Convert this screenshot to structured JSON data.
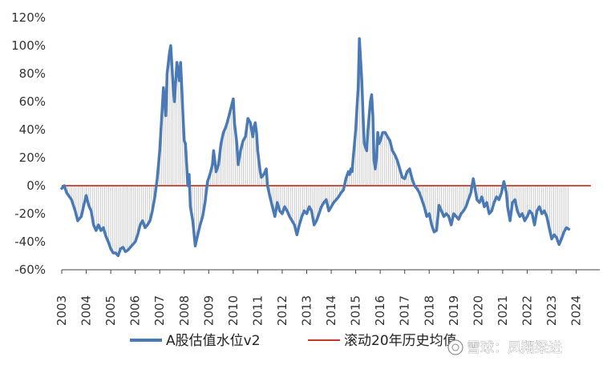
{
  "chart_data": {
    "type": "line",
    "title": "",
    "xlabel": "",
    "ylabel": "",
    "ylim": [
      -60,
      120
    ],
    "y_ticks": [
      "-60%",
      "-40%",
      "-20%",
      "0%",
      "20%",
      "40%",
      "60%",
      "80%",
      "100%",
      "120%"
    ],
    "x_ticks": [
      "2003",
      "2004",
      "2005",
      "2006",
      "2007",
      "2008",
      "2009",
      "2010",
      "2011",
      "2012",
      "2013",
      "2014",
      "2015",
      "2016",
      "2017",
      "2018",
      "2019",
      "2020",
      "2021",
      "2022",
      "2023",
      "2024"
    ],
    "grid": false,
    "legend_position": "bottom",
    "series": [
      {
        "name": "A股估值水位v2",
        "color": "#4a7ab5",
        "points": [
          [
            2003.0,
            -2
          ],
          [
            2003.1,
            0
          ],
          [
            2003.2,
            -5
          ],
          [
            2003.4,
            -10
          ],
          [
            2003.55,
            -18
          ],
          [
            2003.65,
            -25
          ],
          [
            2003.8,
            -22
          ],
          [
            2003.9,
            -14
          ],
          [
            2004.0,
            -7
          ],
          [
            2004.1,
            -14
          ],
          [
            2004.2,
            -18
          ],
          [
            2004.3,
            -28
          ],
          [
            2004.4,
            -32
          ],
          [
            2004.5,
            -28
          ],
          [
            2004.6,
            -32
          ],
          [
            2004.7,
            -30
          ],
          [
            2004.8,
            -36
          ],
          [
            2004.9,
            -40
          ],
          [
            2005.0,
            -45
          ],
          [
            2005.1,
            -48
          ],
          [
            2005.2,
            -48
          ],
          [
            2005.3,
            -50
          ],
          [
            2005.4,
            -45
          ],
          [
            2005.5,
            -44
          ],
          [
            2005.6,
            -47
          ],
          [
            2005.7,
            -46
          ],
          [
            2005.8,
            -44
          ],
          [
            2005.9,
            -42
          ],
          [
            2006.0,
            -40
          ],
          [
            2006.1,
            -35
          ],
          [
            2006.2,
            -28
          ],
          [
            2006.3,
            -25
          ],
          [
            2006.4,
            -30
          ],
          [
            2006.5,
            -28
          ],
          [
            2006.6,
            -25
          ],
          [
            2006.7,
            -18
          ],
          [
            2006.8,
            -8
          ],
          [
            2006.9,
            5
          ],
          [
            2007.0,
            25
          ],
          [
            2007.1,
            55
          ],
          [
            2007.15,
            70
          ],
          [
            2007.2,
            60
          ],
          [
            2007.25,
            50
          ],
          [
            2007.3,
            80
          ],
          [
            2007.4,
            95
          ],
          [
            2007.45,
            100
          ],
          [
            2007.5,
            85
          ],
          [
            2007.55,
            70
          ],
          [
            2007.6,
            60
          ],
          [
            2007.7,
            88
          ],
          [
            2007.75,
            82
          ],
          [
            2007.8,
            75
          ],
          [
            2007.85,
            88
          ],
          [
            2007.9,
            70
          ],
          [
            2007.95,
            50
          ],
          [
            2008.0,
            32
          ],
          [
            2008.05,
            30
          ],
          [
            2008.1,
            15
          ],
          [
            2008.15,
            0
          ],
          [
            2008.2,
            8
          ],
          [
            2008.25,
            -15
          ],
          [
            2008.35,
            -25
          ],
          [
            2008.45,
            -43
          ],
          [
            2008.55,
            -35
          ],
          [
            2008.65,
            -28
          ],
          [
            2008.75,
            -22
          ],
          [
            2008.85,
            -12
          ],
          [
            2008.95,
            3
          ],
          [
            2009.05,
            8
          ],
          [
            2009.15,
            15
          ],
          [
            2009.2,
            25
          ],
          [
            2009.3,
            10
          ],
          [
            2009.4,
            15
          ],
          [
            2009.5,
            30
          ],
          [
            2009.6,
            38
          ],
          [
            2009.7,
            42
          ],
          [
            2009.8,
            48
          ],
          [
            2009.9,
            55
          ],
          [
            2010.0,
            62
          ],
          [
            2010.05,
            45
          ],
          [
            2010.15,
            30
          ],
          [
            2010.2,
            15
          ],
          [
            2010.3,
            25
          ],
          [
            2010.4,
            32
          ],
          [
            2010.5,
            35
          ],
          [
            2010.6,
            48
          ],
          [
            2010.7,
            45
          ],
          [
            2010.8,
            35
          ],
          [
            2010.85,
            42
          ],
          [
            2010.9,
            45
          ],
          [
            2010.95,
            38
          ],
          [
            2011.0,
            25
          ],
          [
            2011.1,
            10
          ],
          [
            2011.15,
            6
          ],
          [
            2011.25,
            8
          ],
          [
            2011.35,
            12
          ],
          [
            2011.4,
            0
          ],
          [
            2011.5,
            -8
          ],
          [
            2011.6,
            -15
          ],
          [
            2011.7,
            -22
          ],
          [
            2011.8,
            -12
          ],
          [
            2011.9,
            -18
          ],
          [
            2012.0,
            -20
          ],
          [
            2012.1,
            -15
          ],
          [
            2012.2,
            -18
          ],
          [
            2012.3,
            -22
          ],
          [
            2012.4,
            -25
          ],
          [
            2012.5,
            -28
          ],
          [
            2012.6,
            -35
          ],
          [
            2012.7,
            -28
          ],
          [
            2012.8,
            -22
          ],
          [
            2012.9,
            -18
          ],
          [
            2013.0,
            -20
          ],
          [
            2013.1,
            -15
          ],
          [
            2013.2,
            -18
          ],
          [
            2013.3,
            -28
          ],
          [
            2013.4,
            -25
          ],
          [
            2013.5,
            -20
          ],
          [
            2013.6,
            -15
          ],
          [
            2013.7,
            -12
          ],
          [
            2013.8,
            -10
          ],
          [
            2013.9,
            -18
          ],
          [
            2014.0,
            -15
          ],
          [
            2014.1,
            -12
          ],
          [
            2014.2,
            -10
          ],
          [
            2014.3,
            -8
          ],
          [
            2014.4,
            -5
          ],
          [
            2014.5,
            -3
          ],
          [
            2014.6,
            5
          ],
          [
            2014.7,
            10
          ],
          [
            2014.75,
            8
          ],
          [
            2014.8,
            12
          ],
          [
            2014.85,
            10
          ],
          [
            2014.9,
            20
          ],
          [
            2014.95,
            30
          ],
          [
            2015.0,
            40
          ],
          [
            2015.05,
            55
          ],
          [
            2015.1,
            70
          ],
          [
            2015.15,
            105
          ],
          [
            2015.2,
            90
          ],
          [
            2015.25,
            75
          ],
          [
            2015.3,
            50
          ],
          [
            2015.35,
            30
          ],
          [
            2015.45,
            25
          ],
          [
            2015.5,
            40
          ],
          [
            2015.55,
            50
          ],
          [
            2015.6,
            60
          ],
          [
            2015.65,
            65
          ],
          [
            2015.7,
            50
          ],
          [
            2015.75,
            18
          ],
          [
            2015.8,
            12
          ],
          [
            2015.85,
            20
          ],
          [
            2015.9,
            38
          ],
          [
            2015.95,
            30
          ],
          [
            2016.0,
            32
          ],
          [
            2016.1,
            38
          ],
          [
            2016.2,
            38
          ],
          [
            2016.3,
            35
          ],
          [
            2016.4,
            32
          ],
          [
            2016.5,
            25
          ],
          [
            2016.6,
            22
          ],
          [
            2016.7,
            18
          ],
          [
            2016.8,
            12
          ],
          [
            2016.9,
            6
          ],
          [
            2017.0,
            5
          ],
          [
            2017.1,
            10
          ],
          [
            2017.2,
            12
          ],
          [
            2017.3,
            5
          ],
          [
            2017.4,
            0
          ],
          [
            2017.5,
            -2
          ],
          [
            2017.6,
            -5
          ],
          [
            2017.7,
            -10
          ],
          [
            2017.8,
            -15
          ],
          [
            2017.9,
            -22
          ],
          [
            2018.0,
            -20
          ],
          [
            2018.1,
            -28
          ],
          [
            2018.2,
            -33
          ],
          [
            2018.3,
            -32
          ],
          [
            2018.4,
            -14
          ],
          [
            2018.5,
            -18
          ],
          [
            2018.6,
            -22
          ],
          [
            2018.7,
            -20
          ],
          [
            2018.8,
            -22
          ],
          [
            2018.9,
            -28
          ],
          [
            2019.0,
            -20
          ],
          [
            2019.1,
            -22
          ],
          [
            2019.2,
            -24
          ],
          [
            2019.3,
            -20
          ],
          [
            2019.4,
            -18
          ],
          [
            2019.5,
            -15
          ],
          [
            2019.6,
            -10
          ],
          [
            2019.7,
            -5
          ],
          [
            2019.75,
            0
          ],
          [
            2019.8,
            5
          ],
          [
            2019.9,
            -5
          ],
          [
            2019.95,
            -10
          ],
          [
            2020.05,
            -12
          ],
          [
            2020.15,
            -8
          ],
          [
            2020.25,
            -15
          ],
          [
            2020.35,
            -12
          ],
          [
            2020.45,
            -20
          ],
          [
            2020.55,
            -18
          ],
          [
            2020.65,
            -12
          ],
          [
            2020.75,
            -8
          ],
          [
            2020.85,
            -10
          ],
          [
            2020.95,
            -5
          ],
          [
            2021.05,
            3
          ],
          [
            2021.15,
            -5
          ],
          [
            2021.2,
            -15
          ],
          [
            2021.3,
            -25
          ],
          [
            2021.4,
            -12
          ],
          [
            2021.5,
            -10
          ],
          [
            2021.6,
            -18
          ],
          [
            2021.7,
            -22
          ],
          [
            2021.8,
            -20
          ],
          [
            2021.9,
            -25
          ],
          [
            2022.0,
            -22
          ],
          [
            2022.1,
            -18
          ],
          [
            2022.2,
            -20
          ],
          [
            2022.3,
            -28
          ],
          [
            2022.4,
            -18
          ],
          [
            2022.5,
            -15
          ],
          [
            2022.6,
            -20
          ],
          [
            2022.7,
            -18
          ],
          [
            2022.8,
            -22
          ],
          [
            2022.9,
            -30
          ],
          [
            2023.0,
            -38
          ],
          [
            2023.1,
            -35
          ],
          [
            2023.2,
            -37
          ],
          [
            2023.3,
            -42
          ],
          [
            2023.4,
            -38
          ],
          [
            2023.5,
            -33
          ],
          [
            2023.6,
            -30
          ],
          [
            2023.7,
            -31
          ]
        ]
      },
      {
        "name": "滚动20年历史均值",
        "color": "#c0392b",
        "points": [
          [
            2003.0,
            0
          ],
          [
            2024.6,
            0
          ]
        ]
      }
    ]
  },
  "legend": {
    "series1_label": "A股估值水位v2",
    "series2_label": "滚动20年历史均值"
  },
  "watermark": {
    "text": "雪球：凤翔梁进"
  }
}
